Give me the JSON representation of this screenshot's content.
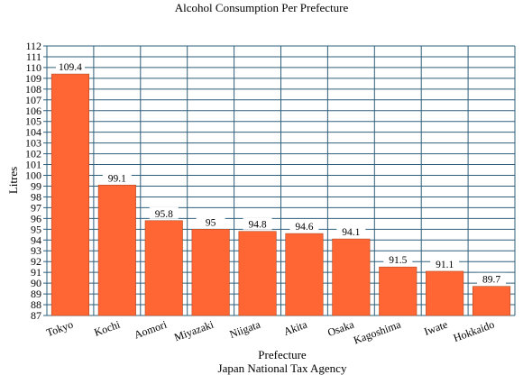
{
  "chart_data": {
    "type": "bar",
    "title": "Alcohol Consumption Per Prefecture",
    "xlabel": "Prefecture",
    "ylabel": "Litres",
    "source": "Japan National Tax Agency",
    "categories": [
      "Tokyo",
      "Kochi",
      "Aomori",
      "Miyazaki",
      "Niigata",
      "Akita",
      "Osaka",
      "Kagoshima",
      "Iwate",
      "Hokkaido"
    ],
    "values": [
      109.4,
      99.1,
      95.8,
      95,
      94.8,
      94.6,
      94.1,
      91.5,
      91.1,
      89.7
    ],
    "value_labels": [
      "109.4",
      "99.1",
      "95.8",
      "95",
      "94.8",
      "94.6",
      "94.1",
      "91.5",
      "91.1",
      "89.7"
    ],
    "ylim": [
      87,
      112
    ],
    "yticks": [
      "87",
      "88",
      "89",
      "90",
      "91",
      "92",
      "93",
      "94",
      "95",
      "96",
      "97",
      "98",
      "99",
      "100",
      "101",
      "102",
      "103",
      "104",
      "105",
      "106",
      "107",
      "108",
      "109",
      "110",
      "111",
      "112"
    ],
    "grid": true,
    "legend": "none",
    "colors": {
      "bar": "#ff6633",
      "bar_edge": "#b34a26",
      "grid": "#2e5f7a",
      "axis": "#2e5f7a"
    }
  }
}
